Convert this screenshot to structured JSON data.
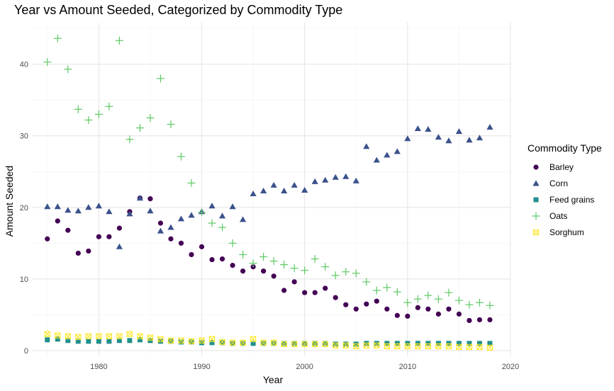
{
  "chart_data": {
    "type": "scatter",
    "title": "Year vs Amount Seeded, Categorized by Commodity Type",
    "xlabel": "Year",
    "ylabel": "Amount Seeded",
    "xlim": [
      1973.5,
      2020
    ],
    "ylim": [
      -0.8,
      45.8
    ],
    "x_ticks": [
      1980,
      1990,
      2000,
      2010,
      2020
    ],
    "y_ticks": [
      0,
      10,
      20,
      30,
      40
    ],
    "x_minor_ticks": [
      1975,
      1985,
      1995,
      2005,
      2015
    ],
    "y_minor_ticks": [
      5,
      15,
      25,
      35,
      45
    ],
    "grid": true,
    "legend": {
      "title": "Commodity Type",
      "position": "right"
    },
    "x": [
      1975,
      1976,
      1977,
      1978,
      1979,
      1980,
      1981,
      1982,
      1983,
      1984,
      1985,
      1986,
      1987,
      1988,
      1989,
      1990,
      1991,
      1992,
      1993,
      1994,
      1995,
      1996,
      1997,
      1998,
      1999,
      2000,
      2001,
      2002,
      2003,
      2004,
      2005,
      2006,
      2007,
      2008,
      2009,
      2010,
      2011,
      2012,
      2013,
      2014,
      2015,
      2016,
      2017,
      2018
    ],
    "series": [
      {
        "name": "Barley",
        "color": "#440154",
        "shape": "circle",
        "values": [
          15.6,
          18.1,
          16.8,
          13.6,
          13.9,
          15.9,
          15.9,
          17.1,
          19.4,
          21.3,
          21.2,
          17.8,
          15.6,
          15.0,
          13.4,
          14.5,
          12.7,
          12.8,
          11.9,
          11.1,
          11.7,
          11.1,
          10.4,
          8.4,
          9.6,
          8.1,
          8.1,
          8.7,
          7.4,
          6.4,
          5.8,
          6.5,
          6.9,
          5.8,
          4.9,
          4.8,
          6.0,
          5.8,
          5.1,
          5.8,
          5.1,
          4.2,
          4.3,
          4.3
        ]
      },
      {
        "name": "Corn",
        "color": "#3b528b",
        "shape": "triangle",
        "values": [
          20.1,
          20.1,
          19.6,
          19.5,
          20.0,
          20.2,
          19.4,
          14.5,
          19.1,
          21.3,
          19.5,
          16.7,
          17.2,
          18.4,
          18.9,
          19.4,
          20.2,
          18.8,
          20.1,
          18.3,
          21.9,
          22.3,
          23.1,
          22.3,
          23.1,
          22.4,
          23.6,
          23.8,
          24.2,
          24.3,
          23.7,
          28.5,
          26.6,
          27.3,
          27.8,
          29.6,
          31.0,
          30.9,
          29.8,
          29.3,
          30.6,
          29.4,
          29.7,
          31.2
        ]
      },
      {
        "name": "Feed grains",
        "color": "#21908c",
        "shape": "square",
        "values": [
          1.5,
          1.6,
          1.4,
          1.3,
          1.3,
          1.3,
          1.3,
          1.4,
          1.4,
          1.5,
          1.4,
          1.3,
          1.3,
          1.2,
          1.2,
          1.1,
          1.1,
          1.1,
          1.0,
          1.0,
          1.0,
          1.0,
          1.0,
          1.0,
          1.0,
          1.0,
          1.0,
          1.0,
          0.9,
          0.9,
          0.9,
          1.0,
          1.0,
          1.0,
          1.0,
          1.0,
          1.0,
          1.0,
          1.0,
          1.0,
          1.0,
          1.0,
          1.0,
          1.0
        ]
      },
      {
        "name": "Oats",
        "color": "#5dc863",
        "shape": "plus",
        "values": [
          40.3,
          43.6,
          39.3,
          33.7,
          32.2,
          33.0,
          34.1,
          43.3,
          29.5,
          31.1,
          32.5,
          38.0,
          31.6,
          27.1,
          23.4,
          19.3,
          17.8,
          17.2,
          15.0,
          13.4,
          12.2,
          13.1,
          12.5,
          12.0,
          11.5,
          11.2,
          12.8,
          11.7,
          10.5,
          11.0,
          10.8,
          9.6,
          8.4,
          8.8,
          8.2,
          6.7,
          7.2,
          7.7,
          7.2,
          8.1,
          7.0,
          6.4,
          6.7,
          6.3
        ]
      },
      {
        "name": "Sorghum",
        "color": "#fde725",
        "shape": "square-x",
        "values": [
          2.3,
          2.1,
          2.0,
          1.9,
          2.0,
          2.0,
          2.0,
          2.0,
          2.3,
          2.0,
          1.8,
          1.6,
          1.4,
          1.4,
          1.3,
          1.4,
          1.6,
          1.2,
          1.1,
          1.1,
          1.6,
          1.1,
          1.1,
          0.9,
          0.9,
          0.9,
          0.9,
          0.9,
          0.7,
          0.7,
          0.6,
          0.7,
          0.7,
          0.6,
          0.6,
          0.6,
          0.6,
          0.6,
          0.6,
          0.6,
          0.5,
          0.5,
          0.5,
          0.4
        ]
      }
    ]
  }
}
